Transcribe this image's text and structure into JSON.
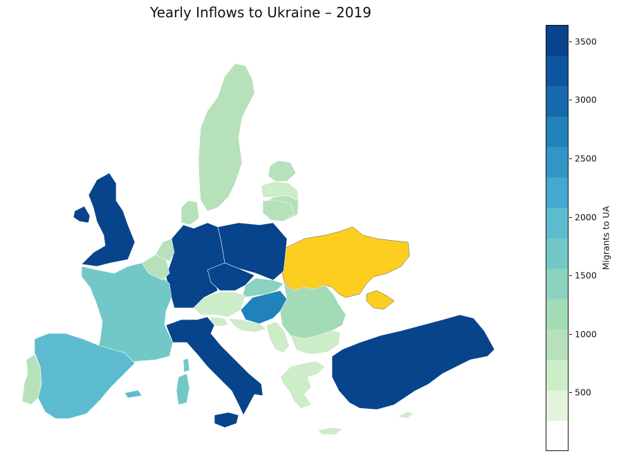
{
  "title": "Yearly Inflows to Ukraine – 2019",
  "colorbar": {
    "label": "Migrants to UA",
    "min": 0,
    "max": 3640,
    "ticks": [
      500,
      1000,
      1500,
      2000,
      2500,
      3000,
      3500
    ],
    "stops": [
      "#ffffff",
      "#e3f4dd",
      "#cdecc8",
      "#b6e1bb",
      "#a3dbb7",
      "#8bd2bf",
      "#72c8c7",
      "#5cbbce",
      "#44a8d0",
      "#3196c5",
      "#2181bb",
      "#1669ad",
      "#0c559f",
      "#08448c"
    ],
    "highlight_color": "#fcce20"
  },
  "chart_data": {
    "type": "choropleth",
    "title": "Yearly Inflows to Ukraine – 2019",
    "value_label": "Migrants to UA",
    "range": [
      0,
      3640
    ],
    "highlighted": "Ukraine",
    "regions": [
      {
        "name": "Ukraine",
        "value": null
      },
      {
        "name": "United Kingdom",
        "value": 3400
      },
      {
        "name": "Ireland",
        "value": 3400
      },
      {
        "name": "Germany",
        "value": 3600
      },
      {
        "name": "Poland",
        "value": 3600
      },
      {
        "name": "Czechia",
        "value": 3600
      },
      {
        "name": "Italy",
        "value": 3600
      },
      {
        "name": "Turkey",
        "value": 3600
      },
      {
        "name": "Hungary",
        "value": 2850
      },
      {
        "name": "Spain",
        "value": 1950
      },
      {
        "name": "France",
        "value": 1700
      },
      {
        "name": "Austria",
        "value": 700
      },
      {
        "name": "Slovakia",
        "value": 1300
      },
      {
        "name": "Romania",
        "value": 1100
      },
      {
        "name": "Bulgaria",
        "value": 700
      },
      {
        "name": "Greece",
        "value": 700
      },
      {
        "name": "Sweden",
        "value": 900
      },
      {
        "name": "Finland",
        "value": 900
      },
      {
        "name": "Estonia",
        "value": 900
      },
      {
        "name": "Latvia",
        "value": 600
      },
      {
        "name": "Lithuania",
        "value": 900
      },
      {
        "name": "Belgium",
        "value": 900
      },
      {
        "name": "Netherlands",
        "value": 900
      },
      {
        "name": "Denmark",
        "value": 900
      },
      {
        "name": "Portugal",
        "value": 900
      },
      {
        "name": "Slovenia",
        "value": 700
      },
      {
        "name": "Croatia",
        "value": 700
      },
      {
        "name": "Serbia",
        "value": 700
      },
      {
        "name": "Sardinia",
        "value": 1700
      },
      {
        "name": "Cyprus",
        "value": 700
      }
    ]
  }
}
